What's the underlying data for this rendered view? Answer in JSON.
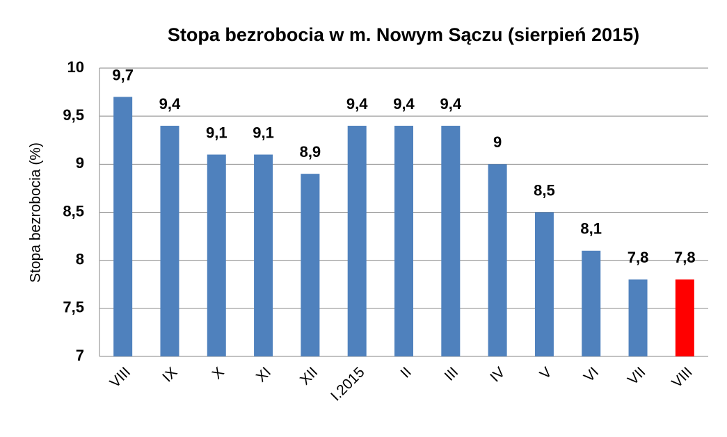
{
  "chart_data": {
    "type": "bar",
    "title": "Stopa bezrobocia w m. Nowym Sączu (sierpień 2015)",
    "y_label": "Stopa bezrobocia (%)",
    "categories": [
      "VIII",
      "IX",
      "X",
      "XI",
      "XII",
      "I.2015",
      "II",
      "III",
      "IV",
      "V",
      "VI",
      "VII",
      "VIII"
    ],
    "values": [
      9.7,
      9.4,
      9.1,
      9.1,
      8.9,
      9.4,
      9.4,
      9.4,
      9.0,
      8.5,
      8.1,
      7.8,
      7.8
    ],
    "value_labels": [
      "9,7",
      "9,4",
      "9,1",
      "9,1",
      "8,9",
      "9,4",
      "9,4",
      "9,4",
      "9",
      "8,5",
      "8,1",
      "7,8",
      "7,8"
    ],
    "colors": [
      "#4f81bd",
      "#4f81bd",
      "#4f81bd",
      "#4f81bd",
      "#4f81bd",
      "#4f81bd",
      "#4f81bd",
      "#4f81bd",
      "#4f81bd",
      "#4f81bd",
      "#4f81bd",
      "#4f81bd",
      "#ff0000"
    ],
    "ylim": [
      7,
      10
    ],
    "yticks": [
      7,
      {
        "value": 7.5,
        "label": "7,5"
      },
      8,
      {
        "value": 8.5,
        "label": "8,5"
      },
      9,
      {
        "value": 9.5,
        "label": "9,5"
      },
      10
    ],
    "grid": true
  }
}
